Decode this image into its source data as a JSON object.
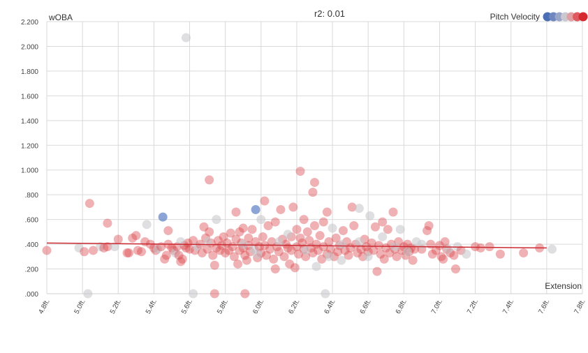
{
  "chart_data": {
    "type": "scatter",
    "title": "r2: 0.01",
    "ylabel": "wOBA",
    "xlabel": "Extension",
    "legend": {
      "label": "Pitch Velocity",
      "placement": "top-right",
      "swatches": [
        "#4a6fb5",
        "#6f86c0",
        "#9aa6c8",
        "#c9c9cf",
        "#e0a0a3",
        "#de5a5f",
        "#d62a31"
      ]
    },
    "xlim": [
      4.8,
      7.8
    ],
    "ylim": [
      0,
      2.2
    ],
    "x_ticks": [
      "4.8ft.",
      "5.0ft.",
      "5.2ft.",
      "5.4ft.",
      "5.6ft.",
      "5.8ft.",
      "6.0ft.",
      "6.2ft.",
      "6.4ft.",
      "6.6ft.",
      "6.8ft.",
      "7.0ft.",
      "7.2ft.",
      "7.4ft.",
      "7.6ft.",
      "7.8ft."
    ],
    "y_ticks": [
      ".000",
      ".200",
      ".400",
      ".600",
      ".800",
      "1.000",
      "1.200",
      "1.400",
      "1.600",
      "1.800",
      "2.000",
      "2.200"
    ],
    "grid": true,
    "trendline": {
      "x": [
        4.8,
        7.6
      ],
      "y": [
        0.41,
        0.37
      ],
      "color": "#cc2b33"
    },
    "colors": {
      "red": "#d8454b",
      "blue": "#5b7fc4",
      "gray": "#c4c4ca"
    },
    "points": [
      [
        4.8,
        0.35,
        "r"
      ],
      [
        4.98,
        0.37,
        "g"
      ],
      [
        5.01,
        0.34,
        "r"
      ],
      [
        5.03,
        0.0,
        "g"
      ],
      [
        5.04,
        0.73,
        "r"
      ],
      [
        5.06,
        0.35,
        "r"
      ],
      [
        5.1,
        0.38,
        "g"
      ],
      [
        5.12,
        0.37,
        "r"
      ],
      [
        5.14,
        0.57,
        "r"
      ],
      [
        5.14,
        0.38,
        "r"
      ],
      [
        5.18,
        0.38,
        "g"
      ],
      [
        5.2,
        0.44,
        "r"
      ],
      [
        5.25,
        0.33,
        "r"
      ],
      [
        5.26,
        0.33,
        "r"
      ],
      [
        5.28,
        0.45,
        "r"
      ],
      [
        5.3,
        0.47,
        "r"
      ],
      [
        5.31,
        0.35,
        "r"
      ],
      [
        5.33,
        0.34,
        "r"
      ],
      [
        5.35,
        0.42,
        "r"
      ],
      [
        5.36,
        0.56,
        "g"
      ],
      [
        5.38,
        0.4,
        "r"
      ],
      [
        5.4,
        0.37,
        "r"
      ],
      [
        5.41,
        0.35,
        "r"
      ],
      [
        5.42,
        0.36,
        "g"
      ],
      [
        5.44,
        0.38,
        "r"
      ],
      [
        5.45,
        0.62,
        "b"
      ],
      [
        5.46,
        0.28,
        "r"
      ],
      [
        5.47,
        0.31,
        "r"
      ],
      [
        5.48,
        0.4,
        "r"
      ],
      [
        5.48,
        0.51,
        "r"
      ],
      [
        5.5,
        0.37,
        "r"
      ],
      [
        5.51,
        0.35,
        "r"
      ],
      [
        5.52,
        0.33,
        "g"
      ],
      [
        5.53,
        0.38,
        "r"
      ],
      [
        5.54,
        0.31,
        "r"
      ],
      [
        5.55,
        0.26,
        "r"
      ],
      [
        5.56,
        0.28,
        "r"
      ],
      [
        5.57,
        0.39,
        "r"
      ],
      [
        5.58,
        0.37,
        "r"
      ],
      [
        5.59,
        0.41,
        "r"
      ],
      [
        5.6,
        0.36,
        "r"
      ],
      [
        5.62,
        0.43,
        "r"
      ],
      [
        5.62,
        0.0,
        "g"
      ],
      [
        5.63,
        0.35,
        "r"
      ],
      [
        5.64,
        0.38,
        "g"
      ],
      [
        5.66,
        0.4,
        "r"
      ],
      [
        5.67,
        0.33,
        "r"
      ],
      [
        5.68,
        0.54,
        "r"
      ],
      [
        5.69,
        0.45,
        "r"
      ],
      [
        5.7,
        0.36,
        "r"
      ],
      [
        5.71,
        0.92,
        "r"
      ],
      [
        5.71,
        0.5,
        "r"
      ],
      [
        5.72,
        0.41,
        "r"
      ],
      [
        5.73,
        0.31,
        "r"
      ],
      [
        5.74,
        0.23,
        "r"
      ],
      [
        5.74,
        0.0,
        "r"
      ],
      [
        5.75,
        0.37,
        "r"
      ],
      [
        5.75,
        0.6,
        "g"
      ],
      [
        5.76,
        0.43,
        "r"
      ],
      [
        5.77,
        0.35,
        "r"
      ],
      [
        5.78,
        0.39,
        "r"
      ],
      [
        5.79,
        0.46,
        "r"
      ],
      [
        5.8,
        0.33,
        "r"
      ],
      [
        5.81,
        0.41,
        "r"
      ],
      [
        5.82,
        0.35,
        "r"
      ],
      [
        5.83,
        0.49,
        "r"
      ],
      [
        5.84,
        0.38,
        "r"
      ],
      [
        5.85,
        0.3,
        "r"
      ],
      [
        5.86,
        0.44,
        "r"
      ],
      [
        5.86,
        0.66,
        "r"
      ],
      [
        5.87,
        0.24,
        "r"
      ],
      [
        5.88,
        0.5,
        "r"
      ],
      [
        5.88,
        0.35,
        "r"
      ],
      [
        5.89,
        0.41,
        "r"
      ],
      [
        5.9,
        0.53,
        "r"
      ],
      [
        5.9,
        0.37,
        "r"
      ],
      [
        5.91,
        0.0,
        "r"
      ],
      [
        5.91,
        0.31,
        "r"
      ],
      [
        5.92,
        0.27,
        "r"
      ],
      [
        5.93,
        0.45,
        "r"
      ],
      [
        5.93,
        0.39,
        "r"
      ],
      [
        5.94,
        0.34,
        "r"
      ],
      [
        5.95,
        0.52,
        "r"
      ],
      [
        5.96,
        0.36,
        "g"
      ],
      [
        5.97,
        0.68,
        "b"
      ],
      [
        5.97,
        0.42,
        "r"
      ],
      [
        5.98,
        0.29,
        "r"
      ],
      [
        5.99,
        0.38,
        "r"
      ],
      [
        6.0,
        0.6,
        "g"
      ],
      [
        6.0,
        0.33,
        "r"
      ],
      [
        6.01,
        0.46,
        "r"
      ],
      [
        6.02,
        0.75,
        "r"
      ],
      [
        6.02,
        0.39,
        "r"
      ],
      [
        6.03,
        0.31,
        "r"
      ],
      [
        6.04,
        0.55,
        "r"
      ],
      [
        6.05,
        0.36,
        "r"
      ],
      [
        6.06,
        0.42,
        "r"
      ],
      [
        6.07,
        0.28,
        "r"
      ],
      [
        6.08,
        0.58,
        "r"
      ],
      [
        6.08,
        0.2,
        "r"
      ],
      [
        6.09,
        0.38,
        "r"
      ],
      [
        6.1,
        0.34,
        "r"
      ],
      [
        6.11,
        0.68,
        "r"
      ],
      [
        6.12,
        0.44,
        "r"
      ],
      [
        6.13,
        0.3,
        "r"
      ],
      [
        6.14,
        0.4,
        "r"
      ],
      [
        6.15,
        0.37,
        "r"
      ],
      [
        6.16,
        0.24,
        "r"
      ],
      [
        6.17,
        0.46,
        "r"
      ],
      [
        6.17,
        0.35,
        "r"
      ],
      [
        6.18,
        0.7,
        "r"
      ],
      [
        6.19,
        0.21,
        "r"
      ],
      [
        6.2,
        0.52,
        "r"
      ],
      [
        6.2,
        0.38,
        "r"
      ],
      [
        6.21,
        0.32,
        "r"
      ],
      [
        6.22,
        0.99,
        "r"
      ],
      [
        6.22,
        0.45,
        "r"
      ],
      [
        6.23,
        0.41,
        "r"
      ],
      [
        6.24,
        0.6,
        "r"
      ],
      [
        6.24,
        0.36,
        "r"
      ],
      [
        6.25,
        0.3,
        "r"
      ],
      [
        6.26,
        0.5,
        "r"
      ],
      [
        6.27,
        0.43,
        "r"
      ],
      [
        6.28,
        0.37,
        "r"
      ],
      [
        6.29,
        0.82,
        "r"
      ],
      [
        6.29,
        0.33,
        "r"
      ],
      [
        6.3,
        0.9,
        "r"
      ],
      [
        6.3,
        0.55,
        "r"
      ],
      [
        6.31,
        0.22,
        "g"
      ],
      [
        6.31,
        0.4,
        "r"
      ],
      [
        6.32,
        0.35,
        "r"
      ],
      [
        6.33,
        0.47,
        "r"
      ],
      [
        6.34,
        0.28,
        "r"
      ],
      [
        6.35,
        0.58,
        "r"
      ],
      [
        6.35,
        0.38,
        "r"
      ],
      [
        6.36,
        0.0,
        "g"
      ],
      [
        6.37,
        0.66,
        "r"
      ],
      [
        6.37,
        0.32,
        "r"
      ],
      [
        6.38,
        0.42,
        "r"
      ],
      [
        6.39,
        0.36,
        "r"
      ],
      [
        6.4,
        0.53,
        "g"
      ],
      [
        6.41,
        0.3,
        "r"
      ],
      [
        6.42,
        0.45,
        "r"
      ],
      [
        6.43,
        0.34,
        "r"
      ],
      [
        6.44,
        0.39,
        "r"
      ],
      [
        6.45,
        0.27,
        "g"
      ],
      [
        6.46,
        0.51,
        "r"
      ],
      [
        6.47,
        0.35,
        "r"
      ],
      [
        6.48,
        0.42,
        "r"
      ],
      [
        6.49,
        0.31,
        "r"
      ],
      [
        6.5,
        0.37,
        "r"
      ],
      [
        6.51,
        0.7,
        "r"
      ],
      [
        6.52,
        0.55,
        "r"
      ],
      [
        6.53,
        0.4,
        "r"
      ],
      [
        6.54,
        0.33,
        "r"
      ],
      [
        6.55,
        0.69,
        "g"
      ],
      [
        6.56,
        0.36,
        "r"
      ],
      [
        6.57,
        0.3,
        "r"
      ],
      [
        6.58,
        0.44,
        "r"
      ],
      [
        6.59,
        0.38,
        "r"
      ],
      [
        6.6,
        0.34,
        "r"
      ],
      [
        6.61,
        0.63,
        "g"
      ],
      [
        6.62,
        0.41,
        "r"
      ],
      [
        6.63,
        0.35,
        "r"
      ],
      [
        6.64,
        0.54,
        "r"
      ],
      [
        6.65,
        0.18,
        "r"
      ],
      [
        6.66,
        0.39,
        "r"
      ],
      [
        6.67,
        0.32,
        "r"
      ],
      [
        6.68,
        0.46,
        "g"
      ],
      [
        6.68,
        0.58,
        "r"
      ],
      [
        6.69,
        0.28,
        "r"
      ],
      [
        6.7,
        0.37,
        "r"
      ],
      [
        6.71,
        0.52,
        "r"
      ],
      [
        6.72,
        0.33,
        "r"
      ],
      [
        6.73,
        0.4,
        "r"
      ],
      [
        6.74,
        0.66,
        "r"
      ],
      [
        6.75,
        0.36,
        "r"
      ],
      [
        6.76,
        0.3,
        "r"
      ],
      [
        6.77,
        0.42,
        "r"
      ],
      [
        6.78,
        0.52,
        "g"
      ],
      [
        6.79,
        0.35,
        "r"
      ],
      [
        6.8,
        0.38,
        "r"
      ],
      [
        6.81,
        0.31,
        "r"
      ],
      [
        6.82,
        0.4,
        "r"
      ],
      [
        6.83,
        0.34,
        "r"
      ],
      [
        6.84,
        0.37,
        "r"
      ],
      [
        6.85,
        0.27,
        "r"
      ],
      [
        6.86,
        0.36,
        "r"
      ],
      [
        6.87,
        0.42,
        "g"
      ],
      [
        6.9,
        0.36,
        "r"
      ],
      [
        6.93,
        0.51,
        "r"
      ],
      [
        6.94,
        0.55,
        "r"
      ],
      [
        6.95,
        0.4,
        "r"
      ],
      [
        6.96,
        0.32,
        "r"
      ],
      [
        6.98,
        0.35,
        "r"
      ],
      [
        7.0,
        0.39,
        "r"
      ],
      [
        7.01,
        0.3,
        "r"
      ],
      [
        7.02,
        0.28,
        "r"
      ],
      [
        7.03,
        0.42,
        "r"
      ],
      [
        7.04,
        0.36,
        "r"
      ],
      [
        7.06,
        0.33,
        "r"
      ],
      [
        7.08,
        0.31,
        "r"
      ],
      [
        7.09,
        0.2,
        "r"
      ],
      [
        7.1,
        0.38,
        "g"
      ],
      [
        7.12,
        0.35,
        "r"
      ],
      [
        7.15,
        0.32,
        "g"
      ],
      [
        7.2,
        0.38,
        "r"
      ],
      [
        7.23,
        0.37,
        "r"
      ],
      [
        7.28,
        0.38,
        "r"
      ],
      [
        7.34,
        0.32,
        "r"
      ],
      [
        7.47,
        0.33,
        "r"
      ],
      [
        7.56,
        0.37,
        "r"
      ],
      [
        7.63,
        0.36,
        "g"
      ],
      [
        5.58,
        2.07,
        "g"
      ],
      [
        5.7,
        0.42,
        "g"
      ],
      [
        5.9,
        0.4,
        "g"
      ],
      [
        6.1,
        0.42,
        "g"
      ],
      [
        6.25,
        0.35,
        "g"
      ],
      [
        6.45,
        0.4,
        "g"
      ],
      [
        6.6,
        0.3,
        "g"
      ],
      [
        6.75,
        0.38,
        "g"
      ],
      [
        6.9,
        0.4,
        "g"
      ],
      [
        7.05,
        0.36,
        "g"
      ],
      [
        5.55,
        0.42,
        "g"
      ],
      [
        5.98,
        0.32,
        "g"
      ],
      [
        6.15,
        0.48,
        "g"
      ],
      [
        6.38,
        0.3,
        "g"
      ],
      [
        6.55,
        0.42,
        "g"
      ],
      [
        6.82,
        0.34,
        "g"
      ]
    ]
  }
}
